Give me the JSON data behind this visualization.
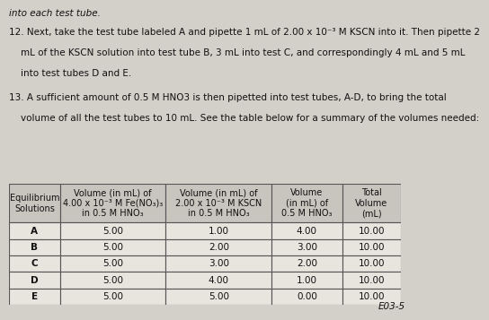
{
  "title_text": "into each test tube.",
  "para12": "12. Next, take the test tube labeled A and pipette 1 mL of 2.00 x 10⁻³ M KSCN into it. Then pipette 2\n    mL of the KSCN solution into test tube B, 3 mL into test C, and correspondingly 4 mL and 5 mL\n    into test tubes D and E.",
  "para13": "13. A sufficient amount of 0.5 M HNO3 is then pipetted into test tubes, A-D, to bring the total\n    volume of all the test tubes to 10 mL. See the table below for a summary of the volumes needed:",
  "col_headers": [
    "Equilibrium\nSolutions",
    "Volume (in mL) of\n4.00 x 10⁻³ M Fe(NO₃)₃\nin 0.5 M HNO₃",
    "Volume (in mL) of\n2.00 x 10⁻³ M KSCN\nin 0.5 M HNO₃",
    "Volume\n(in mL) of\n0.5 M HNO₃",
    "Total\nVolume\n(mL)"
  ],
  "rows": [
    [
      "A",
      "5.00",
      "1.00",
      "4.00",
      "10.00"
    ],
    [
      "B",
      "5.00",
      "2.00",
      "3.00",
      "10.00"
    ],
    [
      "C",
      "5.00",
      "3.00",
      "2.00",
      "10.00"
    ],
    [
      "D",
      "5.00",
      "4.00",
      "1.00",
      "10.00"
    ],
    [
      "E",
      "5.00",
      "5.00",
      "0.00",
      "10.00"
    ]
  ],
  "footer": "E03-5",
  "bg_color": "#d3cfc9",
  "table_bg": "#e8e4de",
  "header_bg": "#c8c4be",
  "border_color": "#555555",
  "text_color": "#111111",
  "body_fontsize": 7.5,
  "header_fontsize": 7.0
}
